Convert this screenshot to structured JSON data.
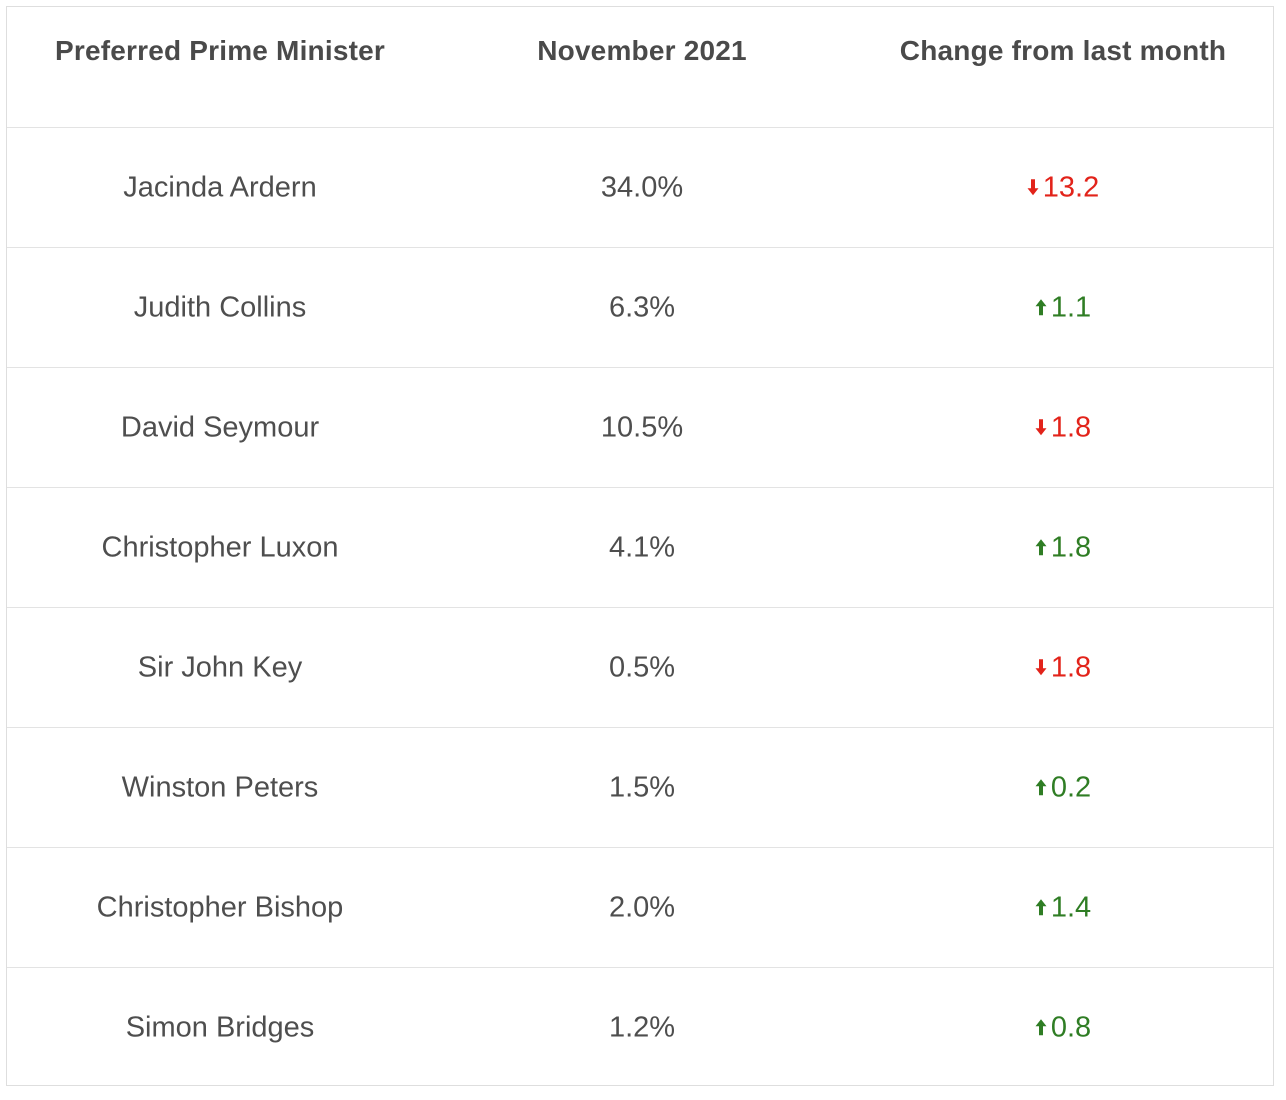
{
  "table": {
    "headers": [
      "Preferred Prime Minister",
      "November 2021",
      "Change from last month"
    ],
    "colors": {
      "down": "#e2231a",
      "up": "#2f7d24"
    },
    "rows": [
      {
        "name": "Jacinda Ardern",
        "value": "34.0%",
        "change": "13.2",
        "direction": "down",
        "icon": "arrow-down-icon"
      },
      {
        "name": "Judith Collins",
        "value": "6.3%",
        "change": "1.1",
        "direction": "up",
        "icon": "arrow-up-icon"
      },
      {
        "name": "David Seymour",
        "value": "10.5%",
        "change": "1.8",
        "direction": "down",
        "icon": "arrow-down-icon"
      },
      {
        "name": "Christopher Luxon",
        "value": "4.1%",
        "change": "1.8",
        "direction": "up",
        "icon": "arrow-up-icon"
      },
      {
        "name": "Sir John Key",
        "value": "0.5%",
        "change": "1.8",
        "direction": "down",
        "icon": "arrow-down-icon"
      },
      {
        "name": "Winston Peters",
        "value": "1.5%",
        "change": "0.2",
        "direction": "up",
        "icon": "arrow-up-icon"
      },
      {
        "name": "Christopher Bishop",
        "value": "2.0%",
        "change": "1.4",
        "direction": "up",
        "icon": "arrow-up-icon"
      },
      {
        "name": "Simon Bridges",
        "value": "1.2%",
        "change": "0.8",
        "direction": "up",
        "icon": "arrow-up-icon"
      }
    ]
  }
}
